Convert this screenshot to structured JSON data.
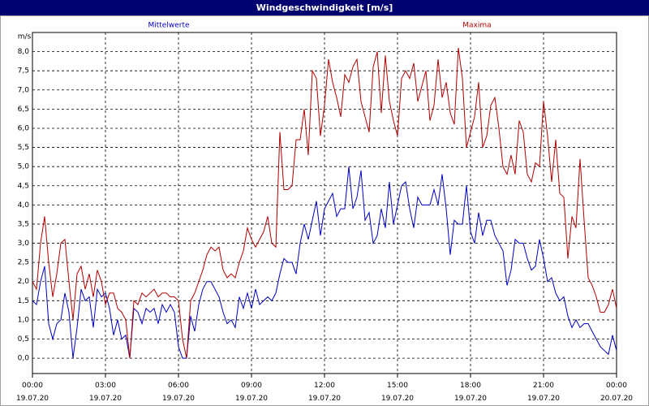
{
  "chart_data": {
    "type": "line",
    "title": "Windgeschwindigkeit [m/s]",
    "y_label": "m/s",
    "x": [
      0,
      10,
      20,
      30,
      40,
      50,
      60,
      70,
      80,
      90,
      100,
      110,
      120,
      130,
      140,
      150,
      160,
      170,
      180,
      190,
      200,
      210,
      220,
      230,
      240,
      250,
      260,
      270,
      280,
      290,
      300,
      310,
      320,
      330,
      340,
      350,
      360,
      370,
      380,
      390,
      400,
      410,
      420,
      430,
      440,
      450,
      460,
      470,
      480,
      490,
      500,
      510,
      520,
      530,
      540,
      550,
      560,
      570,
      580,
      590,
      600,
      610,
      620,
      630,
      640,
      650,
      660,
      670,
      680,
      690,
      700,
      710,
      720,
      730,
      740,
      750,
      760,
      770,
      780,
      790,
      800,
      810,
      820,
      830,
      840,
      850,
      860,
      870,
      880,
      890,
      900,
      910,
      920,
      930,
      940,
      950,
      960,
      970,
      980,
      990,
      1000,
      1010,
      1020,
      1030,
      1040,
      1050,
      1060,
      1070,
      1080,
      1090,
      1100,
      1110,
      1120,
      1130,
      1140,
      1150,
      1160,
      1170,
      1180,
      1190,
      1200,
      1210,
      1220,
      1230,
      1240,
      1250,
      1260,
      1270,
      1280,
      1290,
      1300,
      1310,
      1320,
      1330,
      1340,
      1350,
      1360,
      1370,
      1380,
      1390,
      1400,
      1410,
      1420,
      1430,
      1440
    ],
    "series": [
      {
        "name": "Mittelwerte",
        "color": "#0000c0",
        "values": [
          1.5,
          1.4,
          2.0,
          2.4,
          0.9,
          0.5,
          0.9,
          1.0,
          1.7,
          1.2,
          0.0,
          0.8,
          1.8,
          1.5,
          1.6,
          0.8,
          1.8,
          1.6,
          1.7,
          1.3,
          0.6,
          1.0,
          0.5,
          0.6,
          0.0,
          1.3,
          1.2,
          0.9,
          1.3,
          1.2,
          1.3,
          0.9,
          1.4,
          1.2,
          1.4,
          1.2,
          0.3,
          0.0,
          0.0,
          1.1,
          0.7,
          1.4,
          1.8,
          2.0,
          2.0,
          1.8,
          1.6,
          1.2,
          0.9,
          1.0,
          0.8,
          1.6,
          1.3,
          1.7,
          1.3,
          1.8,
          1.4,
          1.5,
          1.6,
          1.5,
          1.7,
          2.2,
          2.6,
          2.5,
          2.5,
          2.2,
          3.0,
          3.5,
          3.1,
          3.6,
          4.1,
          3.2,
          3.9,
          4.1,
          4.3,
          3.7,
          3.9,
          3.9,
          5.0,
          3.9,
          4.2,
          4.9,
          3.6,
          3.8,
          3.0,
          3.2,
          3.9,
          3.4,
          4.6,
          3.5,
          4.0,
          4.5,
          4.6,
          3.9,
          3.4,
          4.2,
          4.0,
          4.0,
          4.0,
          4.4,
          4.0,
          4.8,
          3.9,
          2.7,
          3.6,
          3.5,
          3.5,
          4.5,
          3.3,
          3.0,
          3.8,
          3.2,
          3.6,
          3.6,
          3.2,
          3.0,
          2.8,
          1.9,
          2.3,
          3.1,
          3.0,
          3.0,
          2.6,
          2.3,
          2.4,
          3.1,
          2.6,
          2.0,
          2.1,
          1.7,
          1.5,
          1.6,
          1.1,
          0.8,
          1.0,
          0.8,
          0.9,
          0.9,
          0.7,
          0.5,
          0.3,
          0.2,
          0.1,
          0.6,
          0.2
        ]
      },
      {
        "name": "Maxima",
        "color": "#b00000",
        "values": [
          2.0,
          1.8,
          3.0,
          3.7,
          2.5,
          1.6,
          2.2,
          3.0,
          3.1,
          2.0,
          1.0,
          2.2,
          2.4,
          1.8,
          2.2,
          1.6,
          2.3,
          2.0,
          1.4,
          1.7,
          1.7,
          1.3,
          1.2,
          1.0,
          0.0,
          1.5,
          1.4,
          1.7,
          1.6,
          1.7,
          1.8,
          1.6,
          1.7,
          1.7,
          1.6,
          1.6,
          1.5,
          0.5,
          0.0,
          1.5,
          1.7,
          2.0,
          2.3,
          2.7,
          2.9,
          2.8,
          2.9,
          2.3,
          2.1,
          2.2,
          2.1,
          2.5,
          2.8,
          3.4,
          3.1,
          2.9,
          3.1,
          3.3,
          3.7,
          3.0,
          2.9,
          5.9,
          4.4,
          4.4,
          4.5,
          5.7,
          5.7,
          6.5,
          5.3,
          7.5,
          7.3,
          5.8,
          6.6,
          7.8,
          7.2,
          6.8,
          6.3,
          7.4,
          7.2,
          7.6,
          7.8,
          6.7,
          6.3,
          5.9,
          7.6,
          8.0,
          6.4,
          7.9,
          6.7,
          6.2,
          5.8,
          7.3,
          7.5,
          7.3,
          7.7,
          6.7,
          7.1,
          7.5,
          6.2,
          6.6,
          7.8,
          6.8,
          7.2,
          6.4,
          6.1,
          8.1,
          7.3,
          5.5,
          5.9,
          6.3,
          7.2,
          5.5,
          5.8,
          6.6,
          6.8,
          6.0,
          5.0,
          4.8,
          5.3,
          4.8,
          6.2,
          5.9,
          4.8,
          4.6,
          5.1,
          5.0,
          6.7,
          5.8,
          4.6,
          5.7,
          4.3,
          4.2,
          2.6,
          3.7,
          3.4,
          5.2,
          3.6,
          2.1,
          1.9,
          1.6,
          1.2,
          1.2,
          1.4,
          1.8,
          1.3
        ]
      }
    ],
    "xlim": [
      0,
      1440
    ],
    "xticks": [
      {
        "value": 0,
        "label": "00:00\n19.07.20"
      },
      {
        "value": 180,
        "label": "03:00\n19.07.20"
      },
      {
        "value": 360,
        "label": "06:00\n19.07.20"
      },
      {
        "value": 540,
        "label": "09:00\n19.07.20"
      },
      {
        "value": 720,
        "label": "12:00\n19.07.20"
      },
      {
        "value": 900,
        "label": "15:00\n19.07.20"
      },
      {
        "value": 1080,
        "label": "18:00\n19.07.20"
      },
      {
        "value": 1260,
        "label": "21:00\n19.07.20"
      },
      {
        "value": 1440,
        "label": "00:00\n20.07.20"
      }
    ],
    "ylim": [
      -0.4,
      8.5
    ],
    "yticks": [
      {
        "value": 0,
        "label": "0,0"
      },
      {
        "value": 0.5,
        "label": "0,5"
      },
      {
        "value": 1,
        "label": "1,0"
      },
      {
        "value": 1.5,
        "label": "1,5"
      },
      {
        "value": 2,
        "label": "2,0"
      },
      {
        "value": 2.5,
        "label": "2,5"
      },
      {
        "value": 3,
        "label": "3,0"
      },
      {
        "value": 3.5,
        "label": "3,5"
      },
      {
        "value": 4,
        "label": "4,0"
      },
      {
        "value": 4.5,
        "label": "4,5"
      },
      {
        "value": 5,
        "label": "5,0"
      },
      {
        "value": 5.5,
        "label": "5,5"
      },
      {
        "value": 6,
        "label": "6,0"
      },
      {
        "value": 6.5,
        "label": "6,5"
      },
      {
        "value": 7,
        "label": "7,0"
      },
      {
        "value": 7.5,
        "label": "7,5"
      },
      {
        "value": 8,
        "label": "8,0"
      }
    ],
    "grid": true
  }
}
